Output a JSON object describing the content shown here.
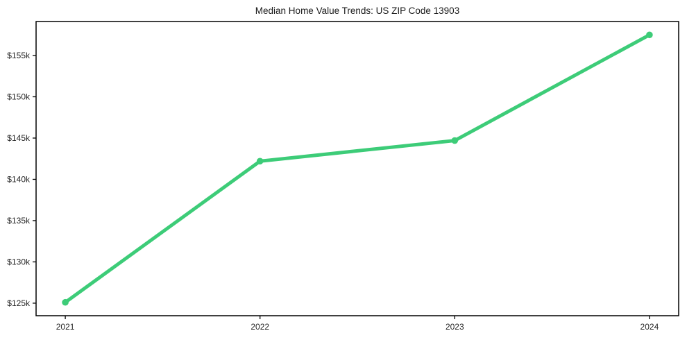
{
  "chart_data": {
    "type": "line",
    "title": "Median Home Value Trends: US ZIP Code 13903",
    "x": [
      2021,
      2022,
      2023,
      2024
    ],
    "x_tick_labels": [
      "2021",
      "2022",
      "2023",
      "2024"
    ],
    "values": [
      125100,
      142200,
      144700,
      157500
    ],
    "y_ticks": [
      {
        "value": 125000,
        "label": "$125k"
      },
      {
        "value": 130000,
        "label": "$130k"
      },
      {
        "value": 135000,
        "label": "$135k"
      },
      {
        "value": 140000,
        "label": "$140k"
      },
      {
        "value": 145000,
        "label": "$145k"
      },
      {
        "value": 150000,
        "label": "$150k"
      },
      {
        "value": 155000,
        "label": "$155k"
      }
    ],
    "xlim": [
      2020.85,
      2024.15
    ],
    "ylim": [
      123480,
      159120
    ],
    "grid": false,
    "legend": "none",
    "line_color": "#3dcc78",
    "marker": "circle",
    "text_color": "#262626",
    "spine_color": "#000000",
    "background": "#ffffff"
  }
}
